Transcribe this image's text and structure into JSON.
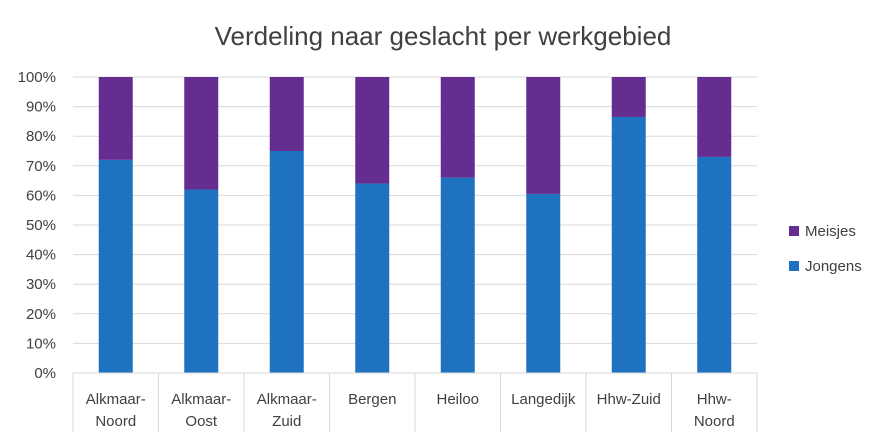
{
  "chart_data": {
    "type": "bar",
    "stacked": true,
    "title": "Verdeling naar geslacht per werkgebied",
    "categories": [
      [
        "Alkmaar-",
        "Noord"
      ],
      [
        "Alkmaar-",
        "Oost"
      ],
      [
        "Alkmaar-",
        "Zuid"
      ],
      [
        "Bergen"
      ],
      [
        "Heiloo"
      ],
      [
        "Langedijk"
      ],
      [
        "Hhw-Zuid"
      ],
      [
        "Hhw-",
        "Noord"
      ]
    ],
    "series": [
      {
        "name": "Jongens",
        "color": "#1f72bf",
        "values": [
          72,
          62,
          75,
          64,
          66,
          60.5,
          86.5,
          73
        ]
      },
      {
        "name": "Meisjes",
        "color": "#662d91",
        "values": [
          28,
          38,
          25,
          36,
          34,
          39.5,
          13.5,
          27
        ]
      }
    ],
    "yticks": [
      "0%",
      "10%",
      "20%",
      "30%",
      "40%",
      "50%",
      "60%",
      "70%",
      "80%",
      "90%",
      "100%"
    ],
    "ylim": [
      0,
      100
    ],
    "grid": true,
    "legend_position": "right",
    "legend_order": [
      "Meisjes",
      "Jongens"
    ]
  }
}
